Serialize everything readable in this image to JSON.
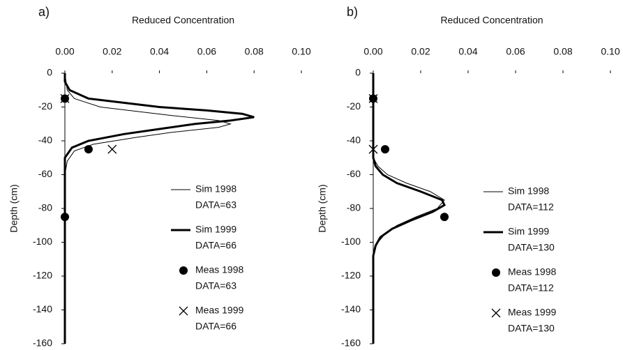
{
  "chart_data": [
    {
      "type": "line",
      "panel_label": "a)",
      "title": "Reduced Concentration",
      "y_label": "Depth (cm)",
      "xlim": [
        0,
        0.1
      ],
      "xticks": [
        {
          "value": 0,
          "label": "0.00"
        },
        {
          "value": 0.02,
          "label": "0.02"
        },
        {
          "value": 0.04,
          "label": "0.04"
        },
        {
          "value": 0.06,
          "label": "0.06"
        },
        {
          "value": 0.08,
          "label": "0.08"
        },
        {
          "value": 0.1,
          "label": "0.10"
        }
      ],
      "ylim": [
        -160,
        0
      ],
      "yticks": [
        0,
        -20,
        -40,
        -60,
        -80,
        -100,
        -120,
        -140,
        -160
      ],
      "series": [
        {
          "name": "Sim 1998",
          "legend_note": "DATA=63",
          "color": "#000000",
          "line_width": 1,
          "depth": [
            0,
            -10,
            -15,
            -20,
            -25,
            -28,
            -30,
            -32,
            -35,
            -38,
            -42,
            -46,
            -52,
            -60,
            -160
          ],
          "values": [
            0,
            0.001,
            0.004,
            0.015,
            0.045,
            0.065,
            0.07,
            0.065,
            0.045,
            0.03,
            0.012,
            0.004,
            0.001,
            0,
            0
          ]
        },
        {
          "name": "Sim 1999",
          "legend_note": "DATA=66",
          "color": "#000000",
          "line_width": 3,
          "depth": [
            0,
            -5,
            -10,
            -15,
            -20,
            -22,
            -24,
            -26,
            -28,
            -30,
            -33,
            -36,
            -40,
            -44,
            -50,
            -160
          ],
          "values": [
            0,
            0,
            0.002,
            0.01,
            0.04,
            0.06,
            0.075,
            0.08,
            0.07,
            0.055,
            0.04,
            0.025,
            0.01,
            0.003,
            0,
            0
          ]
        },
        {
          "name": "Meas 1998",
          "legend_note": "DATA=63",
          "color": "#000000",
          "marker": "circle",
          "depth": [
            -15,
            -45,
            -85
          ],
          "values": [
            0,
            0.01,
            0
          ]
        },
        {
          "name": "Meas 1999",
          "legend_note": "DATA=66",
          "color": "#000000",
          "marker": "x",
          "depth": [
            -15,
            -45
          ],
          "values": [
            0,
            0.02
          ]
        }
      ]
    },
    {
      "type": "line",
      "panel_label": "b)",
      "title": "Reduced Concentration",
      "y_label": "Depth (cm)",
      "xlim": [
        0,
        0.1
      ],
      "xticks": [
        {
          "value": 0,
          "label": "0.00"
        },
        {
          "value": 0.02,
          "label": "0.02"
        },
        {
          "value": 0.04,
          "label": "0.04"
        },
        {
          "value": 0.06,
          "label": "0.06"
        },
        {
          "value": 0.08,
          "label": "0.08"
        },
        {
          "value": 0.1,
          "label": "0.10"
        }
      ],
      "ylim": [
        -160,
        0
      ],
      "yticks": [
        0,
        -20,
        -40,
        -60,
        -80,
        -100,
        -120,
        -140,
        -160
      ],
      "series": [
        {
          "name": "Sim 1998",
          "legend_note": "DATA=112",
          "color": "#000000",
          "line_width": 1,
          "depth": [
            0,
            -50,
            -55,
            -60,
            -65,
            -70,
            -75,
            -80,
            -85,
            -90,
            -95,
            -100,
            -105,
            -160
          ],
          "values": [
            0,
            0,
            0.002,
            0.006,
            0.014,
            0.024,
            0.03,
            0.027,
            0.018,
            0.01,
            0.005,
            0.002,
            0,
            0
          ]
        },
        {
          "name": "Sim 1999",
          "legend_note": "DATA=130",
          "color": "#000000",
          "line_width": 3,
          "depth": [
            0,
            -50,
            -55,
            -60,
            -65,
            -70,
            -75,
            -78,
            -82,
            -87,
            -92,
            -97,
            -102,
            -108,
            -160
          ],
          "values": [
            0,
            0,
            0.001,
            0.004,
            0.01,
            0.02,
            0.029,
            0.03,
            0.025,
            0.016,
            0.008,
            0.003,
            0.001,
            0,
            0
          ]
        },
        {
          "name": "Meas 1998",
          "legend_note": "DATA=112",
          "color": "#000000",
          "marker": "circle",
          "depth": [
            -15,
            -45,
            -85
          ],
          "values": [
            0,
            0.005,
            0.03
          ]
        },
        {
          "name": "Meas 1999",
          "legend_note": "DATA=130",
          "color": "#000000",
          "marker": "x",
          "depth": [
            -15,
            -45
          ],
          "values": [
            0,
            0
          ]
        }
      ]
    }
  ]
}
